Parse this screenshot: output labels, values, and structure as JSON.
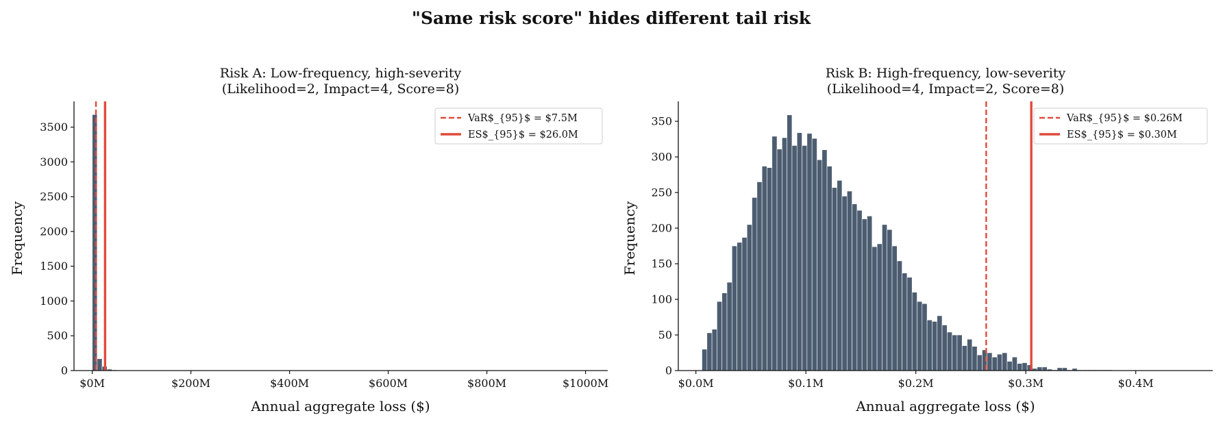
{
  "figure": {
    "suptitle": "\"Same risk score\" hides different tail risk"
  },
  "colors": {
    "bar": "#4d5d71",
    "var_line": "#e04a3a",
    "es_line": "#e04a3a"
  },
  "chart_data": [
    {
      "type": "bar",
      "subtype": "histogram",
      "title": "Risk A: Low-frequency, high-severity",
      "subtitle": "(Likelihood=2, Impact=4, Score=8)",
      "xlabel": "Annual aggregate loss ($)",
      "ylabel": "Frequency",
      "xlim": [
        -37,
        1045
      ],
      "ylim": [
        0,
        3870
      ],
      "xticks": [
        {
          "value": 0,
          "label": "$0M"
        },
        {
          "value": 200,
          "label": "$200M"
        },
        {
          "value": 400,
          "label": "$400M"
        },
        {
          "value": 600,
          "label": "$600M"
        },
        {
          "value": 800,
          "label": "$800M"
        },
        {
          "value": 1000,
          "label": "$1000M"
        }
      ],
      "yticks": [
        0,
        500,
        1000,
        1500,
        2000,
        2500,
        3000,
        3500
      ],
      "bin_width": 10,
      "bin_start": 0,
      "counts": [
        3680,
        170,
        60,
        20,
        10,
        5,
        3,
        2
      ],
      "lines": [
        {
          "kind": "dashed",
          "value": 7.5,
          "legend": "VaR$_{95}$ = $7.5M"
        },
        {
          "kind": "solid",
          "value": 26.0,
          "legend": "ES$_{95}$ = $26.0M"
        }
      ],
      "legend_position": "top-right",
      "grid": false
    },
    {
      "type": "bar",
      "subtype": "histogram",
      "title": "Risk B: High-frequency, low-severity",
      "subtitle": "(Likelihood=4, Impact=2, Score=8)",
      "xlabel": "Annual aggregate loss ($)",
      "ylabel": "Frequency",
      "xlim": [
        -0.016,
        0.47
      ],
      "ylim": [
        0,
        378
      ],
      "xticks": [
        {
          "value": 0.0,
          "label": "$0.0M"
        },
        {
          "value": 0.1,
          "label": "$0.1M"
        },
        {
          "value": 0.2,
          "label": "$0.2M"
        },
        {
          "value": 0.3,
          "label": "$0.3M"
        },
        {
          "value": 0.4,
          "label": "$0.4M"
        }
      ],
      "yticks": [
        0,
        50,
        100,
        150,
        200,
        250,
        300,
        350
      ],
      "bin_width": 0.00455,
      "bin_start": 0.0055,
      "counts": [
        30,
        53,
        58,
        97,
        109,
        124,
        175,
        180,
        187,
        205,
        243,
        265,
        287,
        285,
        329,
        311,
        327,
        359,
        316,
        334,
        316,
        333,
        326,
        296,
        310,
        287,
        257,
        267,
        245,
        252,
        234,
        225,
        213,
        217,
        174,
        178,
        205,
        198,
        175,
        154,
        137,
        131,
        110,
        97,
        94,
        71,
        69,
        77,
        64,
        54,
        50,
        50,
        35,
        44,
        34,
        22,
        29,
        25,
        19,
        23,
        25,
        13,
        19,
        10,
        11,
        8,
        3,
        5,
        5,
        2,
        1,
        4,
        4,
        1,
        3,
        1,
        1,
        1,
        1,
        1,
        1,
        1
      ],
      "lines": [
        {
          "kind": "dashed",
          "value": 0.264,
          "legend": "VaR$_{95}$ = $0.26M"
        },
        {
          "kind": "solid",
          "value": 0.305,
          "legend": "ES$_{95}$ = $0.30M"
        }
      ],
      "legend_position": "top-right",
      "grid": false
    }
  ]
}
